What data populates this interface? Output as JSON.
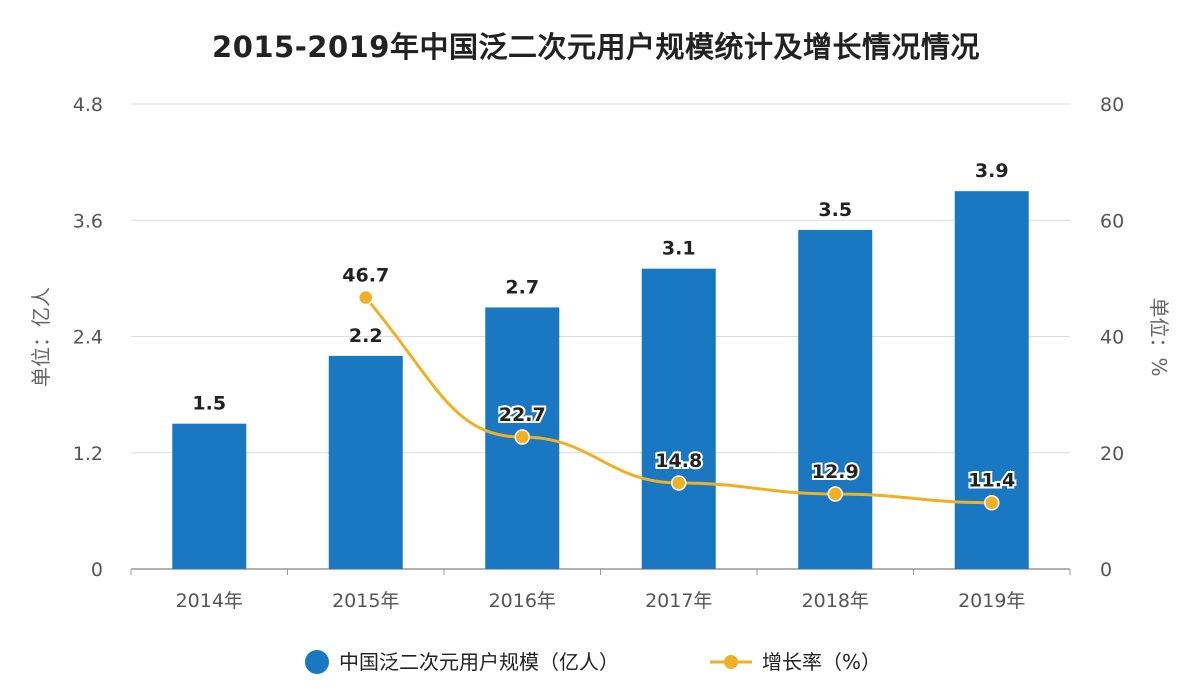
{
  "chart_data": {
    "type": "bar",
    "title": "2015-2019年中国泛二次元用户规模统计及增长情况情况",
    "categories": [
      "2014年",
      "2015年",
      "2016年",
      "2017年",
      "2018年",
      "2019年"
    ],
    "series": [
      {
        "name": "中国泛二次元用户规模（亿人）",
        "type": "bar",
        "axis": "left",
        "values": [
          1.5,
          2.2,
          2.7,
          3.1,
          3.5,
          3.9
        ],
        "labels": [
          "1.5",
          "2.2",
          "2.7",
          "3.1",
          "3.5",
          "3.9"
        ],
        "color": "#1a78c2"
      },
      {
        "name": "增长率（%）",
        "type": "line",
        "axis": "right",
        "values": [
          null,
          46.7,
          22.7,
          14.8,
          12.9,
          11.4
        ],
        "labels": [
          "",
          "46.7",
          "22.7",
          "14.8",
          "12.9",
          "11.4"
        ],
        "color": "#f0b025"
      }
    ],
    "ylabel": "单位：亿人",
    "y2label": "单位：%",
    "ylim": [
      0,
      4.8
    ],
    "y2lim": [
      0,
      80
    ],
    "yticks": [
      "0",
      "1.2",
      "2.4",
      "3.6",
      "4.8"
    ],
    "y2ticks": [
      "0",
      "20",
      "40",
      "60",
      "80"
    ],
    "grid": true,
    "legend": "bottom-center"
  }
}
